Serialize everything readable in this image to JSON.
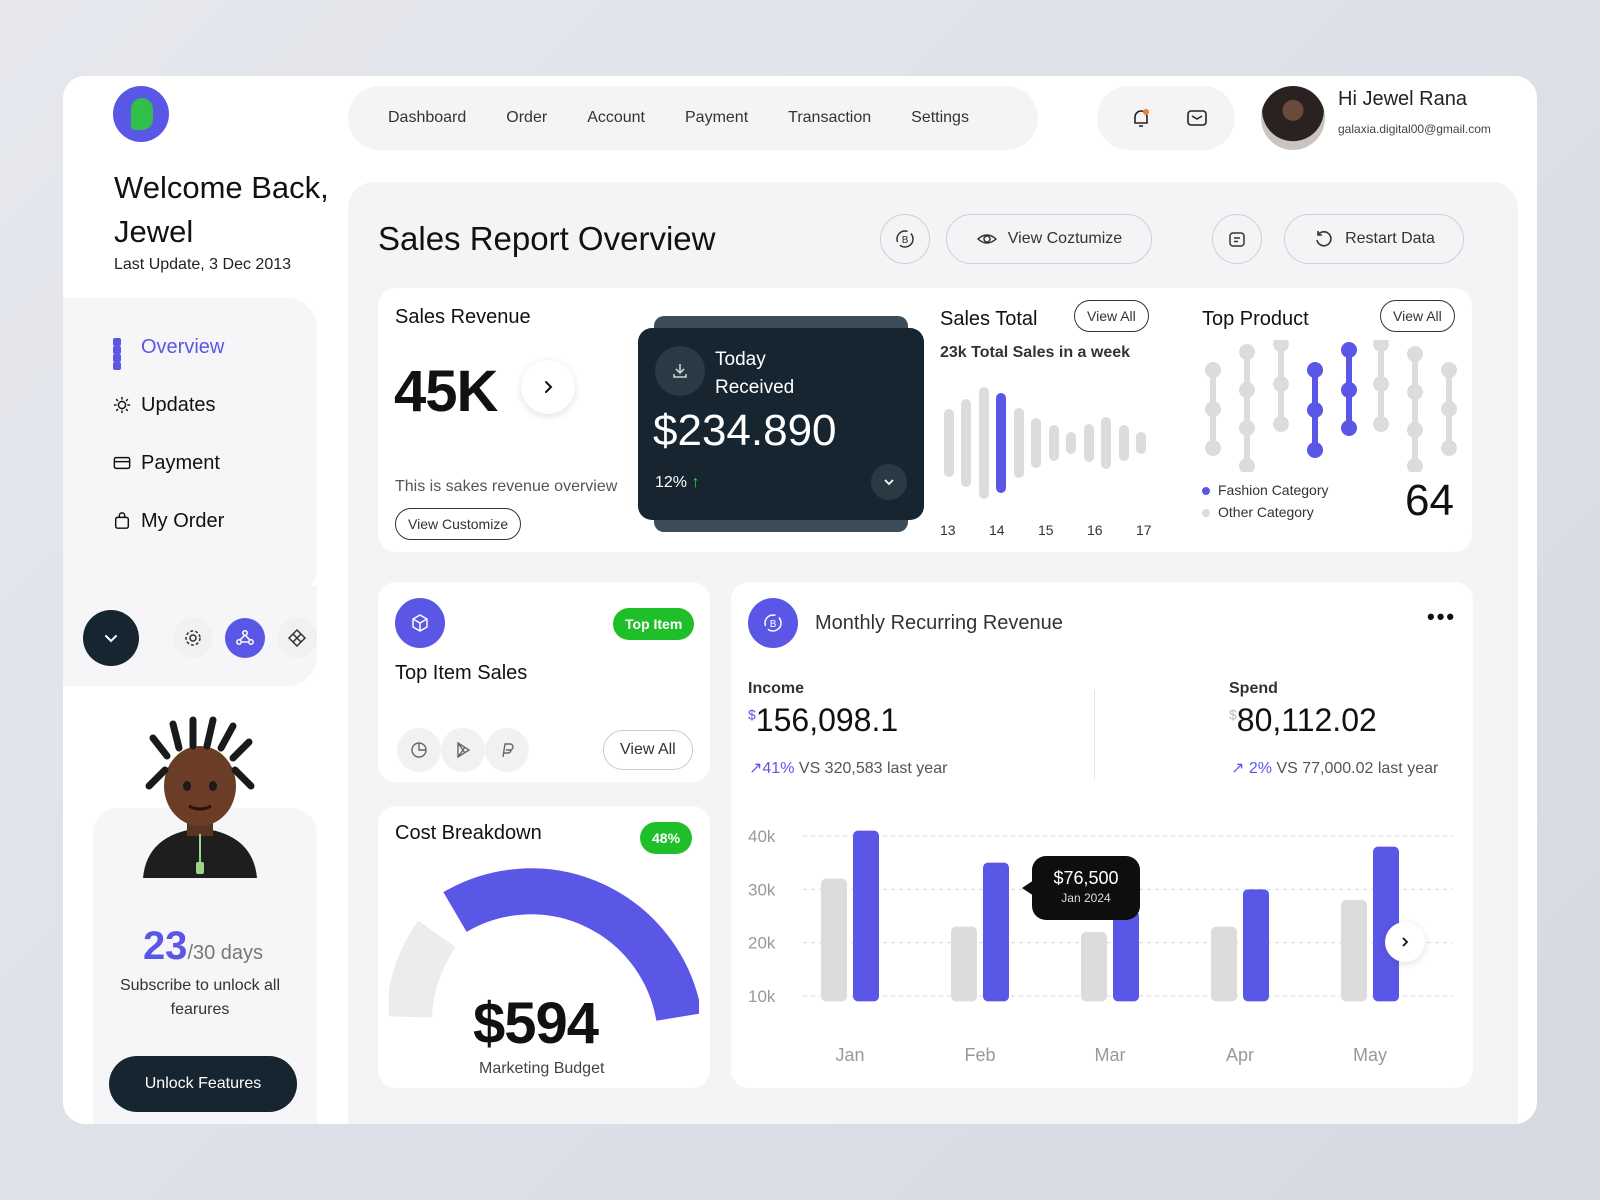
{
  "colors": {
    "accent": "#5b57e6",
    "dark": "#16252f",
    "green": "#1fbf2a",
    "grey_bar": "#dcdcdc"
  },
  "sidebar": {
    "welcome": "Welcome Back, Jewel",
    "last_update": "Last Update, 3 Dec 2013",
    "items": [
      {
        "label": "Overview",
        "icon": "grid-icon"
      },
      {
        "label": "Updates",
        "icon": "sun-icon"
      },
      {
        "label": "Payment",
        "icon": "card-icon"
      },
      {
        "label": "My Order",
        "icon": "bag-icon"
      }
    ],
    "subscription": {
      "days_used": "23",
      "days_total": "/30 days",
      "text": "Subscribe to unlock all fearures",
      "button": "Unlock Features"
    }
  },
  "nav": {
    "items": [
      "Dashboard",
      "Order",
      "Account",
      "Payment",
      "Transaction",
      "Settings"
    ]
  },
  "user": {
    "greeting": "Hi Jewel Rana",
    "email": "galaxia.digital00@gmail.com"
  },
  "main": {
    "title": "Sales Report Overview",
    "view_customize": "View Coztumize",
    "restart": "Restart Data"
  },
  "sales_revenue": {
    "title": "Sales Revenue",
    "value": "45K",
    "desc": "This is sakes revenue overview",
    "button": "View Customize"
  },
  "today": {
    "label_line1": "Today",
    "label_line2": "Received",
    "amount": "$234.890",
    "change": "12%"
  },
  "sales_total": {
    "title": "Sales Total",
    "view_all": "View All",
    "subtitle": "23k Total Sales in a week",
    "labels": [
      "13",
      "14",
      "15",
      "16",
      "17"
    ],
    "bars": [
      {
        "h": 68,
        "c": "grey"
      },
      {
        "h": 88,
        "c": "grey"
      },
      {
        "h": 112,
        "c": "grey"
      },
      {
        "h": 100,
        "c": "accent"
      },
      {
        "h": 70,
        "c": "grey"
      },
      {
        "h": 50,
        "c": "grey"
      },
      {
        "h": 36,
        "c": "grey"
      },
      {
        "h": 22,
        "c": "grey"
      },
      {
        "h": 38,
        "c": "grey"
      },
      {
        "h": 52,
        "c": "grey"
      },
      {
        "h": 36,
        "c": "grey"
      },
      {
        "h": 22,
        "c": "grey"
      }
    ]
  },
  "top_product": {
    "title": "Top Product",
    "view_all": "View All",
    "legend": [
      "Fashion Category",
      "Other Category"
    ],
    "value": "64"
  },
  "top_item": {
    "title": "Top Item Sales",
    "badge": "Top Item",
    "view_all": "View All"
  },
  "cost": {
    "title": "Cost Breakdown",
    "badge": "48%",
    "value": "$594",
    "label": "Marketing Budget"
  },
  "mrr": {
    "title": "Monthly Recurring Revenue",
    "income_label": "Income",
    "income_value": "156,098.1",
    "income_change": "41%",
    "income_vs": "VS 320,583 last year",
    "spend_label": "Spend",
    "spend_value": "80,112.02",
    "spend_change": "2%",
    "spend_vs": "VS 77,000.02 last year",
    "currency": "$",
    "tooltip_value": "$76,500",
    "tooltip_date": "Jan 2024"
  },
  "chart_data": {
    "type": "bar",
    "categories": [
      "Jan",
      "Feb",
      "Mar",
      "Apr",
      "May"
    ],
    "series": [
      {
        "values": [
          32,
          23,
          22,
          23,
          28
        ]
      },
      {
        "values": [
          41,
          35,
          26,
          30,
          38
        ]
      }
    ],
    "yticks": [
      "40k",
      "30k",
      "20k",
      "10k"
    ],
    "ylim": [
      10,
      40
    ]
  }
}
